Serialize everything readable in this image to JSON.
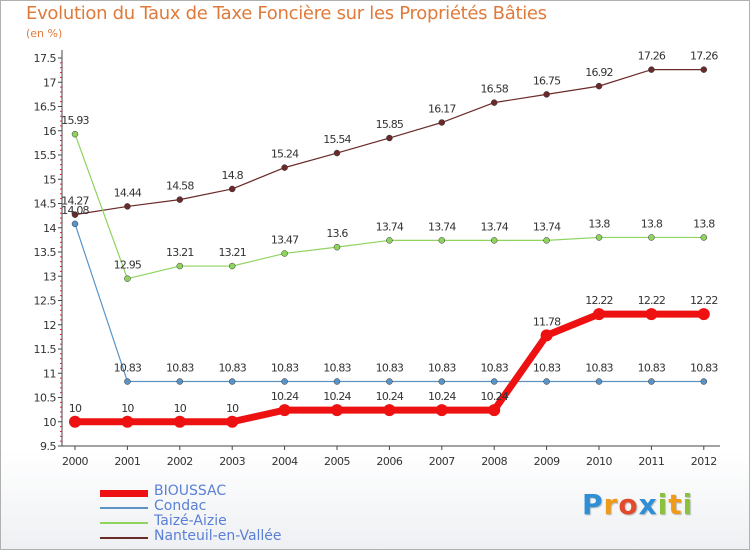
{
  "title": "Evolution du Taux de Taxe Foncière sur les Propriétés Bâties",
  "unit_label": "(en %)",
  "logo": {
    "letters": [
      "P",
      "r",
      "o",
      "x",
      "i",
      "t",
      "i"
    ],
    "colors": [
      "#2f8fd6",
      "#f09a1c",
      "#e24a2a",
      "#2f8fd6",
      "#8ac23c",
      "#f09a1c",
      "#8ac23c"
    ]
  },
  "chart_data": {
    "type": "line",
    "title": "Evolution du Taux de Taxe Foncière sur les Propriétés Bâties",
    "ylabel": "(en %)",
    "xlabel": "",
    "ylim": [
      9.5,
      17.5
    ],
    "y_ticks": [
      "9.5",
      "10",
      "10.5",
      "11",
      "11.5",
      "12",
      "12.5",
      "13",
      "13.5",
      "14",
      "14.5",
      "15",
      "15.5",
      "16",
      "16.5",
      "17",
      "17.5"
    ],
    "categories": [
      "2000",
      "2001",
      "2002",
      "2003",
      "2004",
      "2005",
      "2006",
      "2007",
      "2008",
      "2009",
      "2010",
      "2011",
      "2012"
    ],
    "series": [
      {
        "name": "BIOUSSAC",
        "color": "#ee1111",
        "values": [
          10,
          10,
          10,
          10,
          10.24,
          10.24,
          10.24,
          10.24,
          10.24,
          11.78,
          12.22,
          12.22,
          12.22
        ],
        "labels": [
          "10",
          "10",
          "10",
          "10",
          "10.24",
          "10.24",
          "10.24",
          "10.24",
          "10.24",
          "11.78",
          "12.22",
          "12.22",
          "12.22"
        ]
      },
      {
        "name": "Condac",
        "color": "#5b93c7",
        "values": [
          14.08,
          10.83,
          10.83,
          10.83,
          10.83,
          10.83,
          10.83,
          10.83,
          10.83,
          10.83,
          10.83,
          10.83,
          10.83
        ],
        "labels": [
          "14.08",
          "10.83",
          "10.83",
          "10.83",
          "10.83",
          "10.83",
          "10.83",
          "10.83",
          "10.83",
          "10.83",
          "10.83",
          "10.83",
          "10.83"
        ]
      },
      {
        "name": "Taizé-Aizie",
        "color": "#8fd35f",
        "values": [
          15.93,
          12.95,
          13.21,
          13.21,
          13.47,
          13.6,
          13.74,
          13.74,
          13.74,
          13.74,
          13.8,
          13.8,
          13.8
        ],
        "labels": [
          "15.93",
          "12.95",
          "13.21",
          "13.21",
          "13.47",
          "13.6",
          "13.74",
          "13.74",
          "13.74",
          "13.74",
          "13.8",
          "13.8",
          "13.8"
        ]
      },
      {
        "name": "Nanteuil-en-Vallée",
        "color": "#6b2a2a",
        "values": [
          14.27,
          14.44,
          14.58,
          14.8,
          15.24,
          15.54,
          15.85,
          16.17,
          16.58,
          16.75,
          16.92,
          17.26,
          17.26
        ],
        "labels": [
          "14.27",
          "14.44",
          "14.58",
          "14.8",
          "15.24",
          "15.54",
          "15.85",
          "16.17",
          "16.58",
          "16.75",
          "16.92",
          "17.26",
          "17.26"
        ]
      }
    ],
    "legend_position": "bottom-left",
    "grid": false
  }
}
